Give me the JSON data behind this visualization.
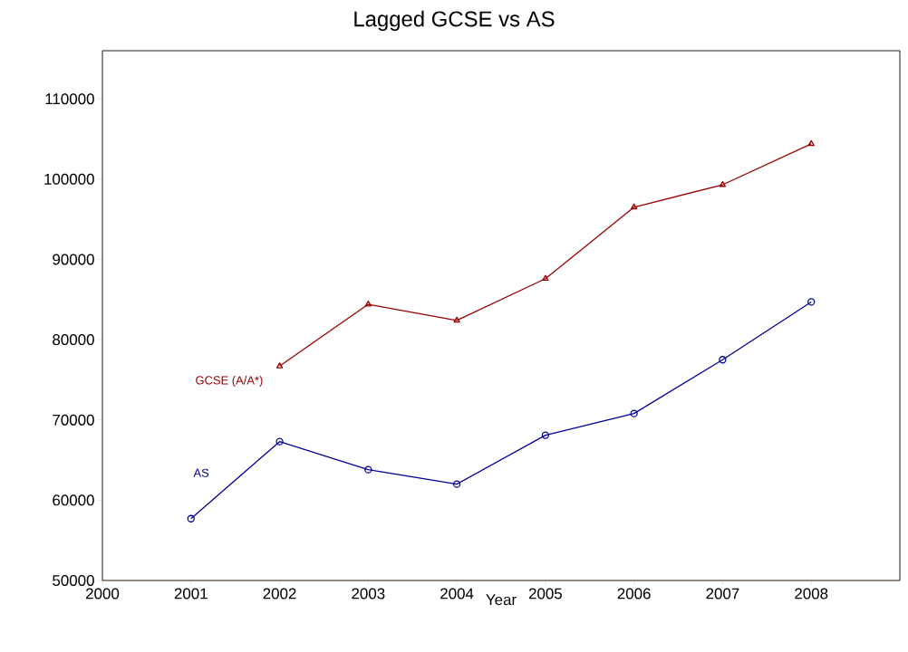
{
  "chart_data": {
    "type": "line",
    "title": "Lagged GCSE vs AS",
    "xlabel": "Year",
    "x": [
      2001,
      2002,
      2003,
      2004,
      2005,
      2006,
      2007,
      2008
    ],
    "series": [
      {
        "name": "GCSE (A/A*)",
        "color": "#990000",
        "marker": "triangle",
        "values": [
          null,
          76700,
          84400,
          82400,
          87600,
          96500,
          99300,
          104400
        ]
      },
      {
        "name": "AS",
        "color": "#000099",
        "marker": "circle",
        "values": [
          57700,
          67300,
          63800,
          62000,
          68100,
          70800,
          77500,
          84700
        ]
      }
    ],
    "xlim": [
      2000,
      2009
    ],
    "ylim": [
      50000,
      116000
    ],
    "xticks": [
      2000,
      2001,
      2002,
      2003,
      2004,
      2005,
      2006,
      2007,
      2008
    ],
    "yticks": [
      50000,
      60000,
      70000,
      80000,
      90000,
      100000,
      110000
    ],
    "grid": false,
    "legend": false,
    "line_style": "solid"
  }
}
